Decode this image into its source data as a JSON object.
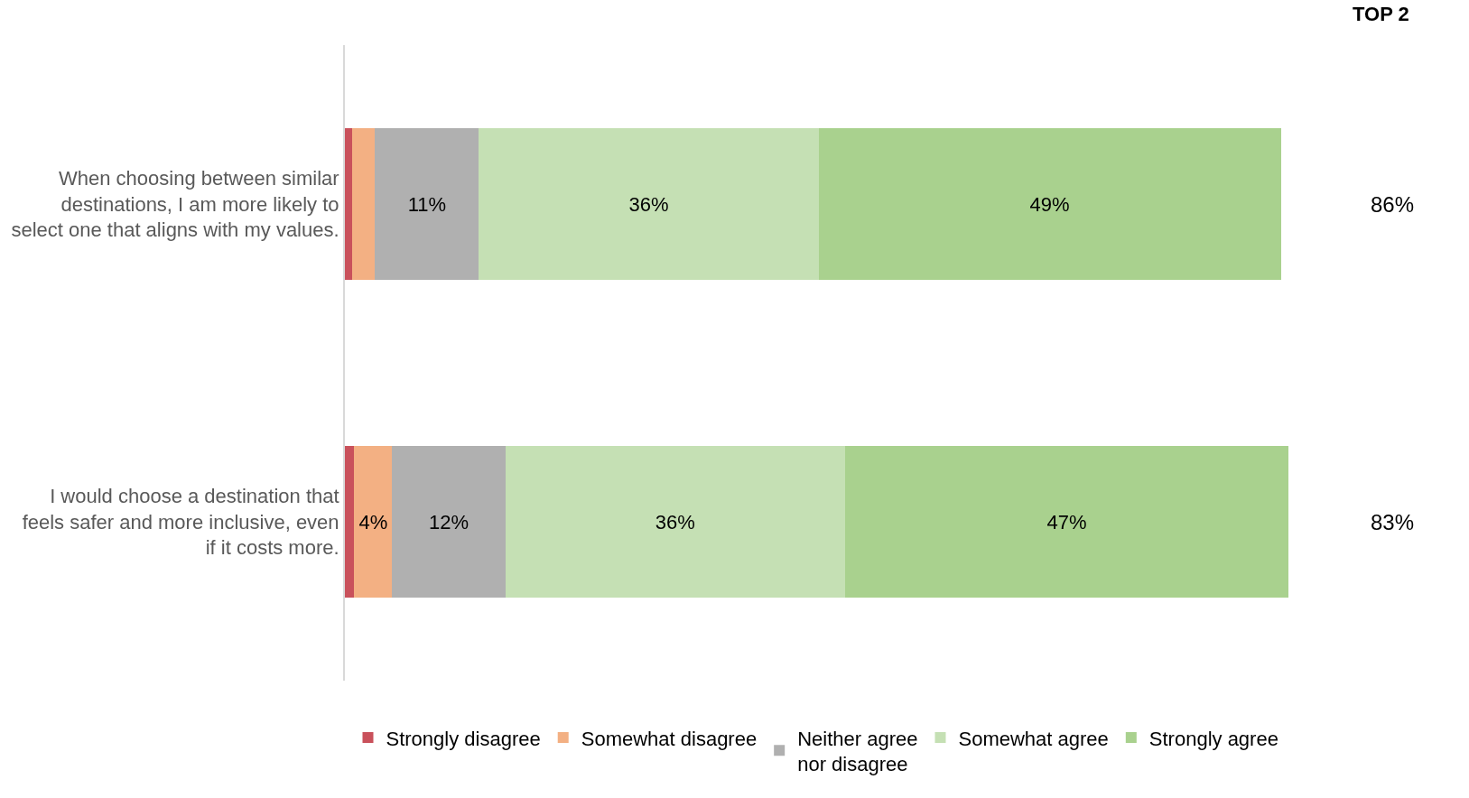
{
  "chart_data": {
    "type": "bar",
    "orientation": "horizontal",
    "stacked": true,
    "categories": [
      "When choosing between similar destinations, I am more likely to select one that aligns with my values.",
      "I would choose a destination that feels safer and more inclusive, even if it costs more."
    ],
    "xlim": [
      0,
      100
    ],
    "tick_labels": "y",
    "legend": "bottom",
    "series": [
      {
        "name": "Strongly disagree",
        "color": "#c9515b",
        "values": [
          0.8,
          1
        ],
        "value_labels": [
          null,
          null
        ]
      },
      {
        "name": "Somewhat disagree",
        "color": "#f3b083",
        "values": [
          2.4,
          4
        ],
        "value_labels": [
          null,
          "4%"
        ]
      },
      {
        "name": "Neither agree\nnor disagree",
        "color": "#b0b0b0",
        "values": [
          11,
          12
        ],
        "value_labels": [
          "11%",
          "12%"
        ]
      },
      {
        "name": "Somewhat agree",
        "color": "#c5e0b4",
        "values": [
          36,
          36
        ],
        "value_labels": [
          "36%",
          "36%"
        ]
      },
      {
        "name": "Strongly agree",
        "color": "#a9d18e",
        "values": [
          49,
          47
        ],
        "value_labels": [
          "49%",
          "47%"
        ]
      }
    ],
    "annotations": [
      "TOP 2",
      "86%",
      "83%"
    ]
  }
}
